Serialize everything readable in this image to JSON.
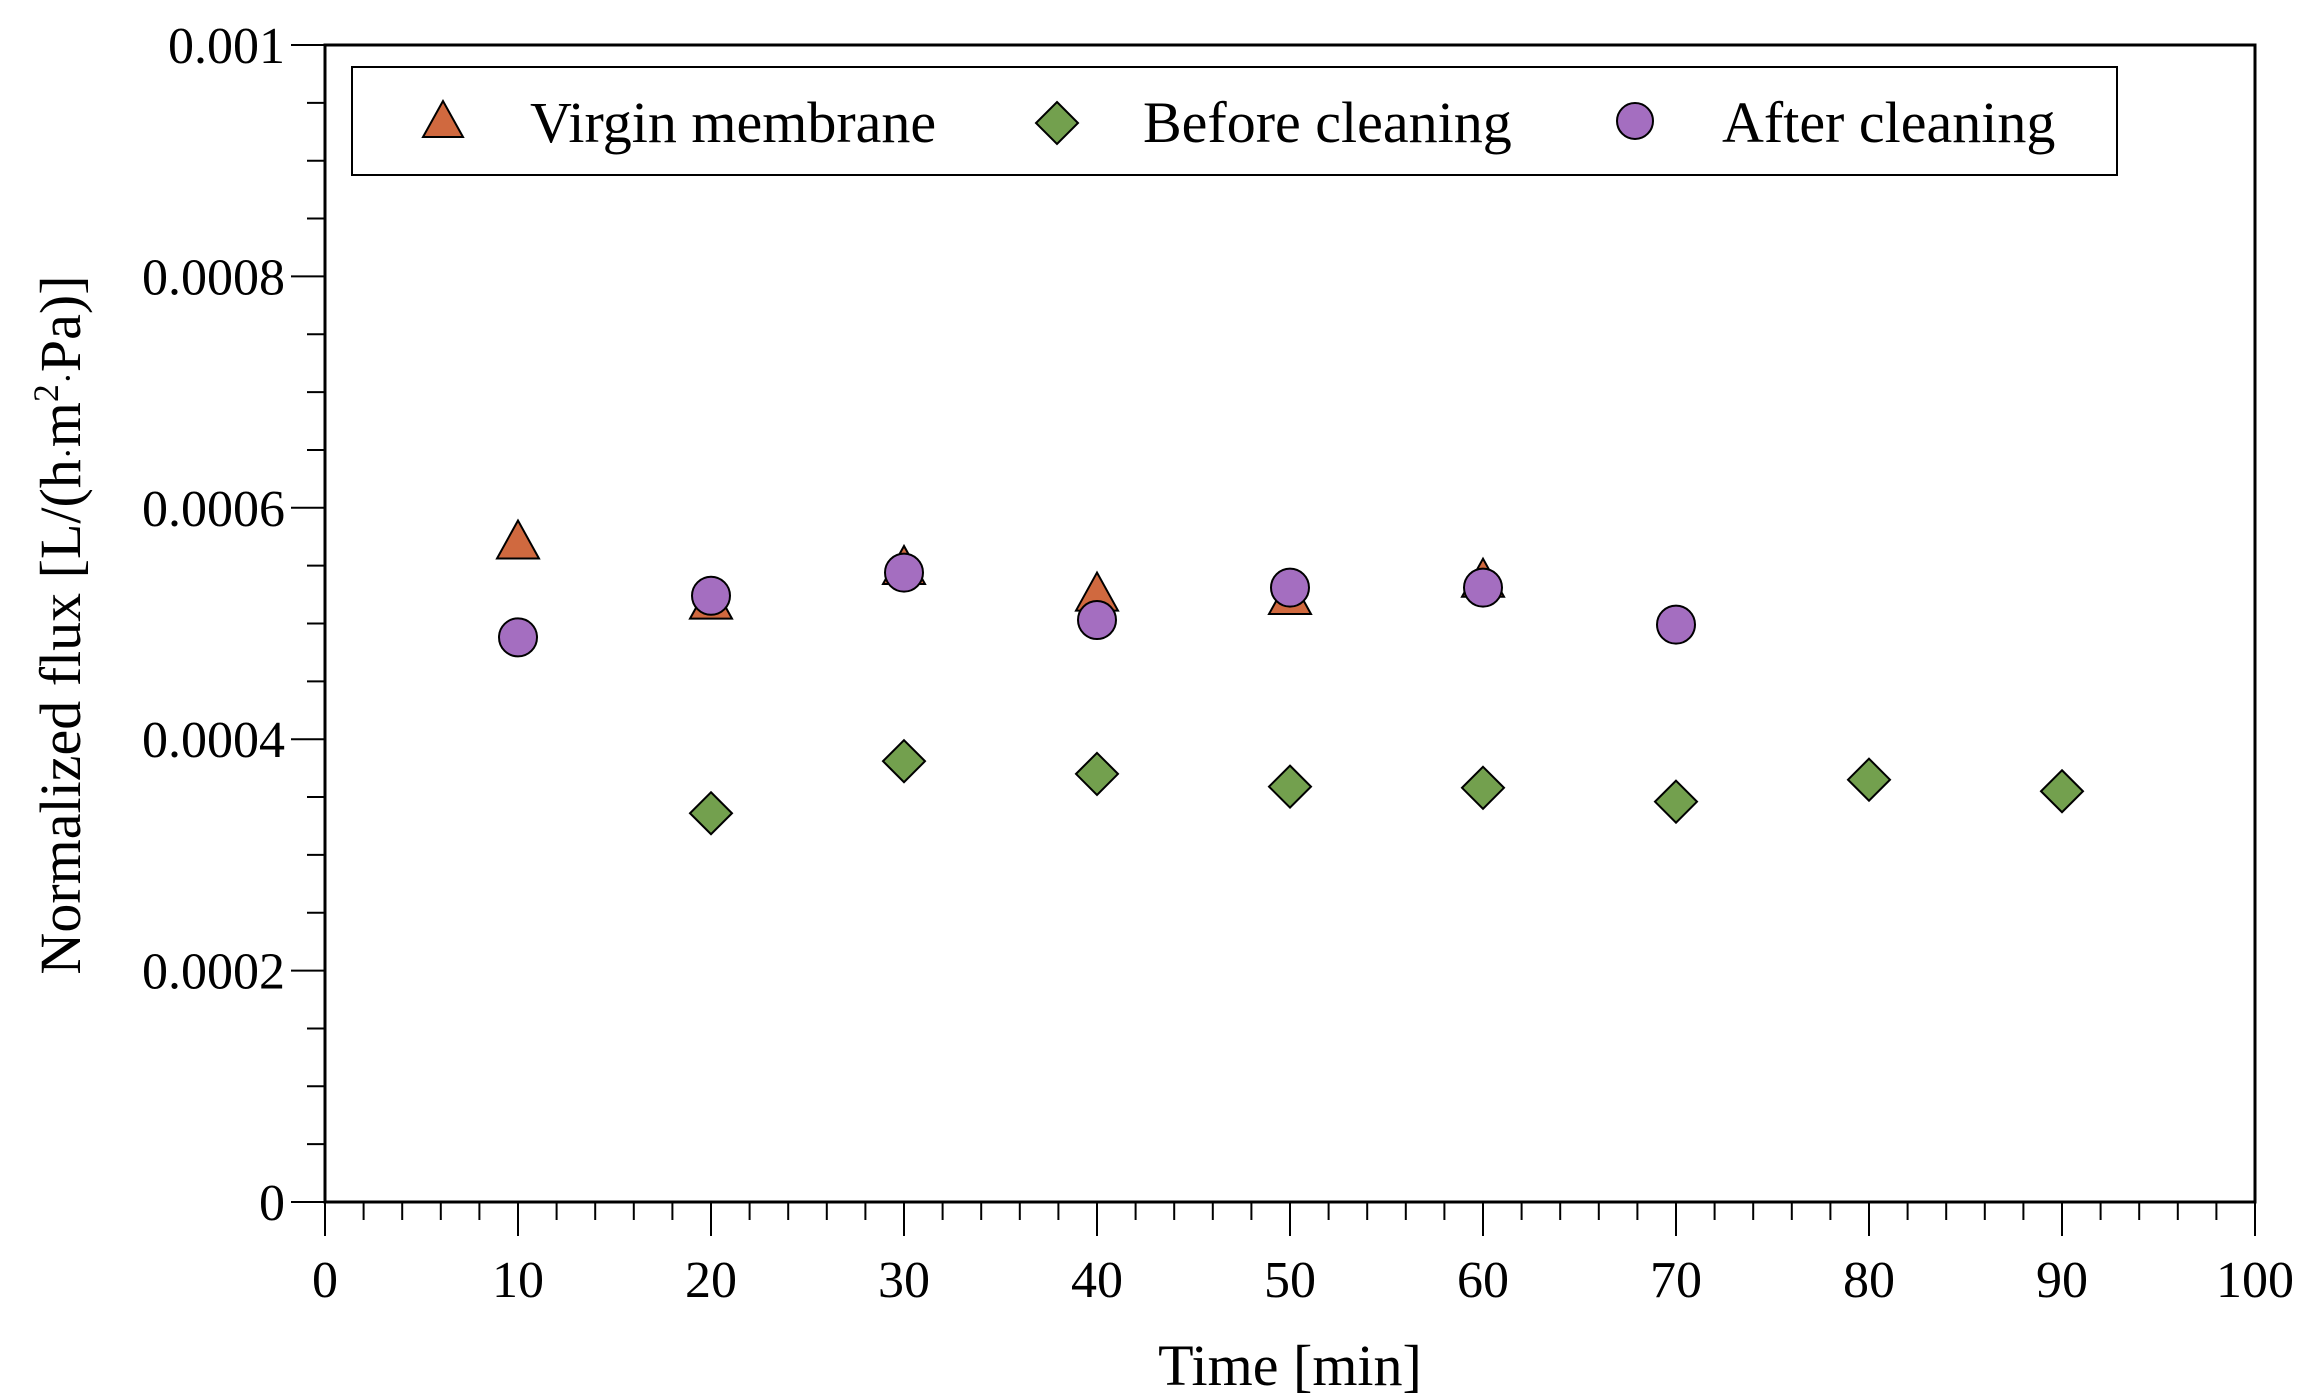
{
  "chart_data": {
    "type": "scatter",
    "title": "",
    "xlabel": "Time [min]",
    "ylabel_parts": [
      "Normalized flux [L/(h",
      "·",
      "m",
      "2",
      "·",
      "Pa)]"
    ],
    "xlim": [
      0,
      100
    ],
    "ylim": [
      0,
      0.001
    ],
    "x_ticks": [
      "0",
      "10",
      "20",
      "30",
      "40",
      "50",
      "60",
      "70",
      "80",
      "90",
      "100"
    ],
    "y_ticks": [
      "0",
      "0.0002",
      "0.0004",
      "0.0006",
      "0.0008",
      "0.001"
    ],
    "grid": false,
    "legend_position": "top",
    "series": [
      {
        "name": "Virgin membrane",
        "marker": "triangle",
        "color": "#D0693F",
        "x": [
          10,
          20,
          30,
          40,
          50,
          60
        ],
        "y": [
          0.00057,
          0.000518,
          0.000548,
          0.000525,
          0.000522,
          0.000537
        ]
      },
      {
        "name": "Before cleaning",
        "marker": "diamond",
        "color": "#73A04E",
        "x": [
          20,
          30,
          40,
          50,
          60,
          70,
          80,
          90
        ],
        "y": [
          0.000336,
          0.000381,
          0.00037,
          0.000359,
          0.000358,
          0.000346,
          0.000365,
          0.000355
        ]
      },
      {
        "name": "After cleaning",
        "marker": "circle",
        "color": "#A46EC0",
        "x": [
          10,
          20,
          30,
          40,
          50,
          60,
          70
        ],
        "y": [
          0.000488,
          0.000524,
          0.000544,
          0.000503,
          0.000531,
          0.000531,
          0.000499
        ]
      }
    ]
  }
}
